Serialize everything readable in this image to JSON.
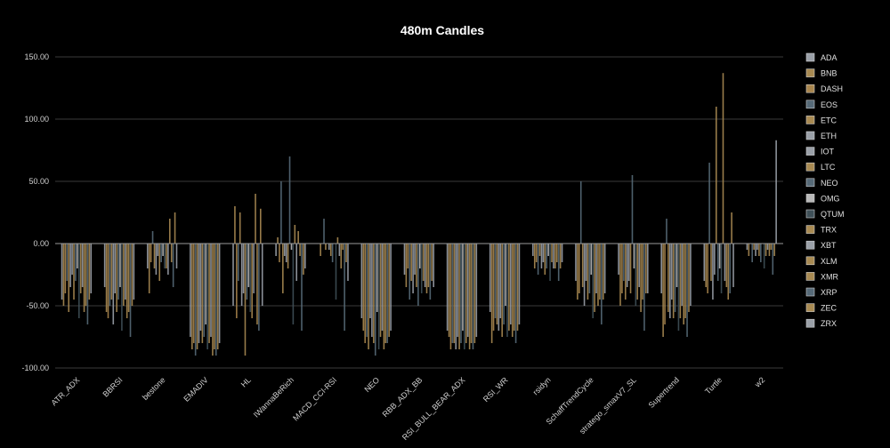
{
  "chart_data": {
    "type": "bar",
    "title": "480m Candles",
    "xlabel": "",
    "ylabel": "",
    "ylim": [
      -100,
      150
    ],
    "y_ticks": [
      "150.00",
      "100.00",
      "50.00",
      "0.00",
      "-50.00",
      "-100.00"
    ],
    "grid": "horizontal",
    "legend_position": "right",
    "categories": [
      "ATR_ADX",
      "BBRSI",
      "bestone",
      "EMADIV",
      "HL",
      "IWannaBeRich",
      "MACD_CCI-RSI",
      "NEO",
      "RBB_ADX_BB",
      "RSI_BULL_BEAR_ADX",
      "RSI_WR",
      "rsidyn",
      "SchaffTrendCycle",
      "stratego_smaxV7_SL",
      "Supertrend",
      "Turtle",
      "w2"
    ],
    "series": [
      {
        "name": "ADA",
        "color": "#9aa0a8",
        "values": [
          -45,
          -35,
          -20,
          -75,
          -50,
          -10,
          0,
          -60,
          -25,
          -70,
          -55,
          -10,
          -30,
          -25,
          -40,
          -30,
          -5
        ]
      },
      {
        "name": "BNB",
        "color": "#a88a52",
        "values": [
          -50,
          -55,
          -40,
          -85,
          30,
          5,
          -10,
          -70,
          -35,
          -75,
          -80,
          -20,
          -45,
          -50,
          -75,
          -35,
          -10
        ]
      },
      {
        "name": "DASH",
        "color": "#a8854d",
        "values": [
          -40,
          -60,
          -15,
          -80,
          -60,
          -15,
          0,
          -80,
          -20,
          -85,
          -70,
          -15,
          -40,
          -40,
          -65,
          -40,
          0
        ]
      },
      {
        "name": "EOS",
        "color": "#566a78",
        "values": [
          -30,
          -50,
          10,
          -90,
          -30,
          50,
          20,
          -75,
          -45,
          -80,
          -60,
          -25,
          50,
          -30,
          20,
          65,
          -15
        ]
      },
      {
        "name": "ETC",
        "color": "#a88a52",
        "values": [
          -55,
          -45,
          -20,
          -85,
          25,
          -40,
          -5,
          -85,
          -30,
          -80,
          -65,
          -10,
          -35,
          -45,
          -55,
          -30,
          -5
        ]
      },
      {
        "name": "ETH",
        "color": "#9aa0a8",
        "values": [
          -35,
          -65,
          -25,
          -80,
          -50,
          -10,
          0,
          -60,
          -40,
          -85,
          -70,
          -20,
          -50,
          -35,
          -60,
          -45,
          -10
        ]
      },
      {
        "name": "IOT",
        "color": "#9aa0a8",
        "values": [
          -25,
          -40,
          -10,
          -70,
          -40,
          -15,
          -5,
          -75,
          -25,
          -75,
          -60,
          -15,
          -30,
          -30,
          -45,
          -25,
          -5
        ]
      },
      {
        "name": "LTC",
        "color": "#a88a52",
        "values": [
          -45,
          -55,
          -30,
          -80,
          -90,
          -20,
          -10,
          -80,
          -35,
          -85,
          -75,
          -25,
          -45,
          -40,
          -60,
          110,
          -10
        ]
      },
      {
        "name": "NEO",
        "color": "#566a78",
        "values": [
          -30,
          -45,
          -15,
          -75,
          -45,
          70,
          -15,
          -90,
          -50,
          -80,
          -65,
          -20,
          -40,
          55,
          -55,
          -30,
          -15
        ]
      },
      {
        "name": "OMG",
        "color": "#b8b8b8",
        "values": [
          -20,
          -35,
          -10,
          -65,
          -35,
          -5,
          0,
          -55,
          -20,
          -70,
          -50,
          -10,
          -25,
          -20,
          -35,
          -20,
          0
        ]
      },
      {
        "name": "QTUM",
        "color": "#3f5058",
        "values": [
          -60,
          -70,
          -20,
          -85,
          -55,
          -65,
          -45,
          -85,
          -40,
          -85,
          -75,
          -30,
          -60,
          -50,
          -70,
          -40,
          -20
        ]
      },
      {
        "name": "TRX",
        "color": "#a88a52",
        "values": [
          -40,
          -50,
          -20,
          -80,
          -60,
          15,
          5,
          -75,
          -30,
          -80,
          -70,
          -15,
          -55,
          -45,
          -60,
          137,
          -10
        ]
      },
      {
        "name": "XBT",
        "color": "#9aa0a8",
        "values": [
          -35,
          -45,
          -25,
          -75,
          -40,
          -30,
          -10,
          -70,
          -35,
          -75,
          -65,
          -20,
          -40,
          -35,
          -50,
          -30,
          -5
        ]
      },
      {
        "name": "XLM",
        "color": "#a88a52",
        "values": [
          -55,
          -60,
          20,
          -90,
          40,
          10,
          -20,
          -85,
          -40,
          -85,
          -75,
          -20,
          -50,
          -55,
          -65,
          -35,
          -10
        ]
      },
      {
        "name": "XMR",
        "color": "#a88a52",
        "values": [
          -50,
          -55,
          -15,
          -85,
          -65,
          -10,
          -5,
          -80,
          -35,
          -80,
          -70,
          -15,
          -45,
          -45,
          -60,
          -45,
          -5
        ]
      },
      {
        "name": "XRP",
        "color": "#566a78",
        "values": [
          -65,
          -75,
          -35,
          -90,
          -70,
          -70,
          -70,
          -80,
          -45,
          -85,
          -80,
          -30,
          -65,
          -70,
          -75,
          -40,
          -25
        ]
      },
      {
        "name": "ZEC",
        "color": "#a88a52",
        "values": [
          -45,
          -50,
          25,
          -85,
          28,
          -25,
          -15,
          -75,
          -30,
          -80,
          -70,
          -20,
          -45,
          -40,
          -55,
          25,
          -10
        ]
      },
      {
        "name": "ZRX",
        "color": "#9aa0a8",
        "values": [
          -40,
          -45,
          -20,
          -80,
          -50,
          -20,
          -30,
          -70,
          -35,
          -75,
          -65,
          -15,
          -40,
          -40,
          -50,
          -35,
          83
        ]
      }
    ]
  }
}
